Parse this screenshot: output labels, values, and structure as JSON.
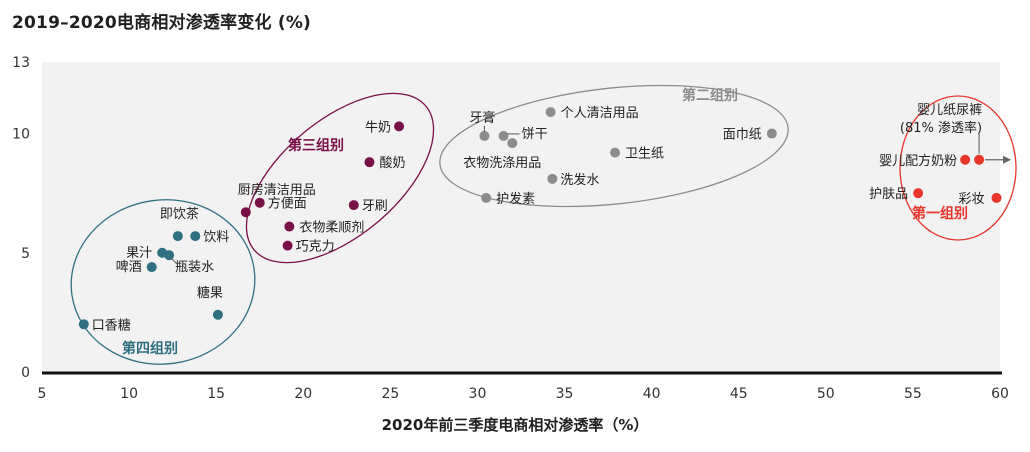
{
  "chart_data": {
    "type": "scatter",
    "title": "2019–2020电商相对渗透率变化 (%)",
    "xlabel": "2020年前三季度电商相对渗透率（%）",
    "ylabel": "",
    "xlim": [
      5,
      60
    ],
    "ylim": [
      0,
      13
    ],
    "xticks": [
      5,
      10,
      15,
      20,
      25,
      30,
      35,
      40,
      45,
      50,
      55,
      60
    ],
    "yticks": [
      0,
      5,
      10,
      13
    ],
    "grid": false,
    "colors": {
      "group1": "#e8362d",
      "group2": "#8c8c8c",
      "group3": "#7a1048",
      "group4": "#2f6f80"
    },
    "groups": [
      {
        "name": "第一组别",
        "color_key": "group1",
        "points": [
          {
            "label": "婴儿纸尿裤",
            "x": 58.8,
            "y": 8.9
          },
          {
            "label": "婴儿配方奶粉",
            "x": 58.0,
            "y": 8.9
          },
          {
            "label": "护肤品",
            "x": 55.3,
            "y": 7.5
          },
          {
            "label": "彩妆",
            "x": 59.8,
            "y": 7.3
          }
        ],
        "annotation": "(81% 渗透率)"
      },
      {
        "name": "第二组别",
        "color_key": "group2",
        "points": [
          {
            "label": "个人清洁用品",
            "x": 34.2,
            "y": 10.9
          },
          {
            "label": "牙膏",
            "x": 30.4,
            "y": 9.9
          },
          {
            "label": "饼干",
            "x": 31.5,
            "y": 9.9
          },
          {
            "label": "衣物洗涤用品",
            "x": 32.0,
            "y": 9.6
          },
          {
            "label": "卫生纸",
            "x": 37.9,
            "y": 9.2
          },
          {
            "label": "面巾纸",
            "x": 46.9,
            "y": 10.0
          },
          {
            "label": "洗发水",
            "x": 34.3,
            "y": 8.1
          },
          {
            "label": "护发素",
            "x": 30.5,
            "y": 7.3
          }
        ]
      },
      {
        "name": "第三组别",
        "color_key": "group3",
        "points": [
          {
            "label": "牛奶",
            "x": 25.5,
            "y": 10.3
          },
          {
            "label": "酸奶",
            "x": 23.8,
            "y": 8.8
          },
          {
            "label": "厨房清洁用品",
            "x": 16.7,
            "y": 6.7
          },
          {
            "label": "方便面",
            "x": 17.5,
            "y": 7.1
          },
          {
            "label": "牙刷",
            "x": 22.9,
            "y": 7.0
          },
          {
            "label": "衣物柔顺剂",
            "x": 19.2,
            "y": 6.1
          },
          {
            "label": "巧克力",
            "x": 19.1,
            "y": 5.3
          }
        ]
      },
      {
        "name": "第四组别",
        "color_key": "group4",
        "points": [
          {
            "label": "即饮茶",
            "x": 12.8,
            "y": 5.7
          },
          {
            "label": "饮料",
            "x": 13.8,
            "y": 5.7
          },
          {
            "label": "果汁",
            "x": 11.9,
            "y": 5.0
          },
          {
            "label": "瓶装水",
            "x": 12.3,
            "y": 4.9
          },
          {
            "label": "啤酒",
            "x": 11.3,
            "y": 4.4
          },
          {
            "label": "糖果",
            "x": 15.1,
            "y": 2.4
          },
          {
            "label": "口香糖",
            "x": 7.4,
            "y": 2.0
          }
        ]
      }
    ]
  }
}
